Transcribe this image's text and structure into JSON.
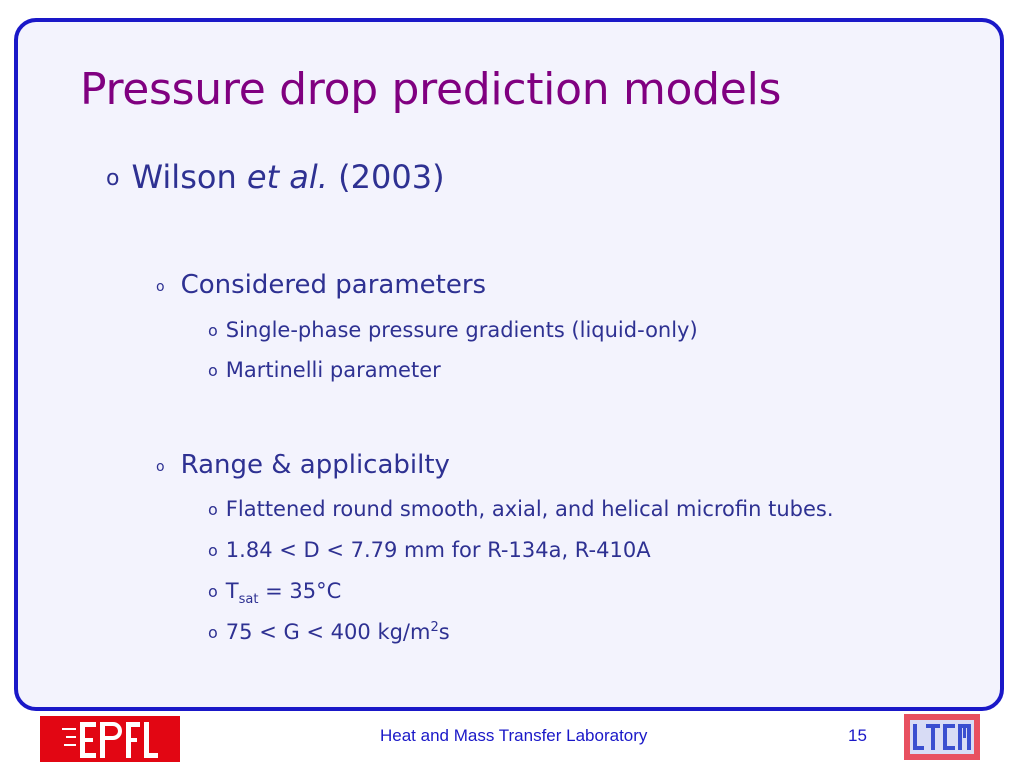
{
  "slide": {
    "title": "Pressure drop prediction models",
    "bullet_glyph": "o",
    "main_point": {
      "name": "Wilson",
      "italic": "et al.",
      "year": "(2003)"
    },
    "sections": [
      {
        "heading": "Considered parameters",
        "items": [
          "Single-phase pressure gradients (liquid-only)",
          "Martinelli parameter"
        ]
      },
      {
        "heading": "Range & applicabilty",
        "items": [
          "Flattened round smooth, axial, and helical microfin tubes.",
          "1.84 < D < 7.79 mm for R-134a, R-410A"
        ],
        "tsat": {
          "symbol": "T",
          "subscript": "sat",
          "value": " = 35°C"
        },
        "mass_flux": {
          "text": "75 < G < 400 kg/m",
          "superscript": "2",
          "unit_tail": "s"
        }
      }
    ]
  },
  "footer": {
    "lab_name": "Heat and Mass Transfer Laboratory",
    "page_number": "15",
    "left_logo_text": "EPFL",
    "right_logo_text": "LTCM"
  },
  "colors": {
    "title": "#800080",
    "body_text": "#2e3192",
    "frame_border": "#1a18c8",
    "frame_fill": "#f3f3fd",
    "epfl_red": "#e20613",
    "ltcm_pink": "#e85060",
    "ltcm_blue": "#3a4fd0"
  }
}
